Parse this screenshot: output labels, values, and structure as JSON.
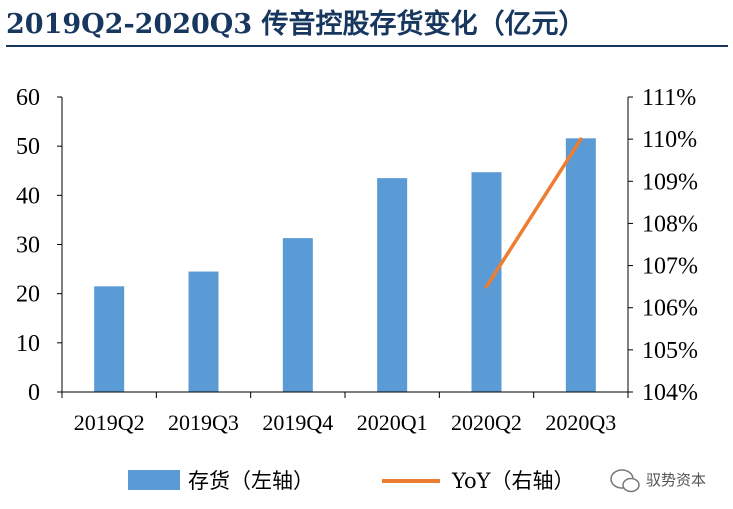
{
  "title": "2019Q2-2020Q3 传音控股存货变化（亿元）",
  "watermark": "驭势资本",
  "chart_data": {
    "type": "bar",
    "categories": [
      "2019Q2",
      "2019Q3",
      "2019Q4",
      "2020Q1",
      "2020Q2",
      "2020Q3"
    ],
    "series": [
      {
        "name": "存货（左轴）",
        "type": "bar",
        "axis": "left",
        "color": "#5b9bd5",
        "values": [
          21.5,
          24.5,
          31.3,
          43.5,
          44.7,
          51.6
        ]
      },
      {
        "name": "YoY（右轴）",
        "type": "line",
        "axis": "right",
        "color": "#ed7d31",
        "values": [
          null,
          null,
          null,
          null,
          1.065,
          1.1
        ]
      }
    ],
    "left_axis": {
      "ylim": [
        0,
        60
      ],
      "ticks": [
        "0",
        "10",
        "20",
        "30",
        "40",
        "50",
        "60"
      ]
    },
    "right_axis": {
      "ylim": [
        1.04,
        1.11
      ],
      "ticks": [
        "104%",
        "105%",
        "106%",
        "107%",
        "108%",
        "109%",
        "110%",
        "111%"
      ]
    },
    "grid": false,
    "legend_position": "bottom"
  }
}
